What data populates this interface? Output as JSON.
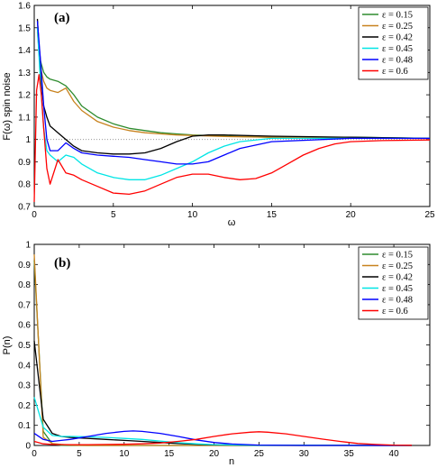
{
  "chart_data": [
    {
      "type": "line",
      "panel_label": "(a)",
      "xlabel": "ω",
      "ylabel": "F(ω) spin noise",
      "xlim": [
        0,
        25
      ],
      "ylim": [
        0.7,
        1.6
      ],
      "xticks": [
        "0",
        "5",
        "10",
        "15",
        "20",
        "25"
      ],
      "yticks": [
        "0.7",
        "0.8",
        "0.9",
        "1",
        "1.1",
        "1.2",
        "1.3",
        "1.4",
        "1.5",
        "1.6"
      ],
      "reference_line": {
        "y": 1,
        "style": "dotted"
      },
      "legend_position": "top-right",
      "series": [
        {
          "name": "ε = 0.15",
          "color": "#2e8b2e",
          "x": [
            0.2,
            0.4,
            0.6,
            0.8,
            1,
            1.5,
            2,
            2.5,
            3,
            4,
            5,
            6,
            7,
            8,
            9,
            10,
            12,
            15,
            20,
            25
          ],
          "y": [
            1.5,
            1.35,
            1.3,
            1.28,
            1.27,
            1.26,
            1.24,
            1.2,
            1.15,
            1.1,
            1.07,
            1.05,
            1.04,
            1.03,
            1.025,
            1.02,
            1.015,
            1.01,
            1.01,
            1.005
          ]
        },
        {
          "name": "ε = 0.25",
          "color": "#c8821e",
          "x": [
            0.2,
            0.4,
            0.6,
            0.8,
            1,
            1.5,
            2,
            2.5,
            3,
            4,
            5,
            6,
            7,
            8,
            9,
            10,
            12,
            15,
            20,
            25
          ],
          "y": [
            1.48,
            1.32,
            1.26,
            1.23,
            1.22,
            1.21,
            1.23,
            1.17,
            1.13,
            1.08,
            1.055,
            1.04,
            1.03,
            1.025,
            1.02,
            1.018,
            1.013,
            1.01,
            1.008,
            1.005
          ]
        },
        {
          "name": "ε = 0.42",
          "color": "#000000",
          "x": [
            0.2,
            0.4,
            0.6,
            0.8,
            1,
            1.5,
            2,
            2.5,
            3,
            4,
            5,
            6,
            7,
            8,
            9,
            10,
            11,
            12,
            15,
            20,
            25
          ],
          "y": [
            1.54,
            1.3,
            1.15,
            1.1,
            1.06,
            1.03,
            1.0,
            0.97,
            0.95,
            0.94,
            0.935,
            0.935,
            0.94,
            0.96,
            0.99,
            1.015,
            1.02,
            1.02,
            1.015,
            1.01,
            1.005
          ]
        },
        {
          "name": "ε = 0.45",
          "color": "#00e5e5",
          "x": [
            0.2,
            0.4,
            0.6,
            0.8,
            1,
            1.5,
            2,
            2.5,
            3,
            4,
            5,
            6,
            7,
            8,
            9,
            10,
            11,
            12,
            13,
            15,
            20,
            25
          ],
          "y": [
            1.5,
            1.25,
            1.05,
            0.95,
            0.93,
            0.9,
            0.93,
            0.92,
            0.89,
            0.85,
            0.83,
            0.82,
            0.82,
            0.84,
            0.87,
            0.9,
            0.94,
            0.97,
            0.99,
            1.005,
            1.005,
            1.005
          ]
        },
        {
          "name": "ε = 0.48",
          "color": "#0000ff",
          "x": [
            0.2,
            0.4,
            0.6,
            0.8,
            1,
            1.5,
            2,
            2.5,
            3,
            4,
            5,
            6,
            7,
            8,
            9,
            10,
            11,
            12,
            13,
            15,
            20,
            25
          ],
          "y": [
            1.53,
            1.35,
            1.15,
            1.0,
            0.95,
            0.95,
            0.985,
            0.96,
            0.94,
            0.93,
            0.925,
            0.92,
            0.91,
            0.9,
            0.89,
            0.89,
            0.9,
            0.93,
            0.96,
            0.99,
            1.005,
            1.005
          ]
        },
        {
          "name": "ε = 0.6",
          "color": "#ff0000",
          "x": [
            0.0,
            0.15,
            0.3,
            0.45,
            0.6,
            0.8,
            1,
            1.5,
            2,
            2.5,
            3,
            4,
            5,
            6,
            7,
            8,
            9,
            10,
            11,
            12,
            13,
            14,
            15,
            16,
            17,
            18,
            19,
            20,
            22,
            25
          ],
          "y": [
            0.72,
            1.22,
            1.29,
            1.2,
            1.05,
            0.87,
            0.8,
            0.91,
            0.85,
            0.84,
            0.82,
            0.79,
            0.76,
            0.755,
            0.77,
            0.8,
            0.83,
            0.845,
            0.845,
            0.83,
            0.82,
            0.825,
            0.85,
            0.89,
            0.93,
            0.96,
            0.98,
            0.99,
            0.995,
            0.998
          ]
        }
      ]
    },
    {
      "type": "line",
      "panel_label": "(b)",
      "xlabel": "n",
      "ylabel": "P(n)",
      "xlim": [
        0,
        44
      ],
      "ylim": [
        0,
        1
      ],
      "xticks": [
        "0",
        "5",
        "10",
        "15",
        "20",
        "25",
        "30",
        "35",
        "40"
      ],
      "yticks": [
        "0",
        "0.1",
        "0.2",
        "0.3",
        "0.4",
        "0.5",
        "0.6",
        "0.7",
        "0.8",
        "0.9",
        "1"
      ],
      "legend_position": "top-right",
      "series": [
        {
          "name": "ε = 0.15",
          "color": "#2e8b2e",
          "x": [
            0,
            1,
            2,
            3,
            4,
            5,
            6,
            8,
            10,
            12,
            42
          ],
          "y": [
            0.92,
            0.07,
            0.008,
            0.001,
            0,
            0,
            0,
            0,
            0,
            0,
            0
          ]
        },
        {
          "name": "ε = 0.25",
          "color": "#c8821e",
          "x": [
            0,
            1,
            2,
            3,
            4,
            5,
            6,
            8,
            10,
            12,
            42
          ],
          "y": [
            0.95,
            0.04,
            0.01,
            0.005,
            0.002,
            0.001,
            0,
            0,
            0,
            0,
            0
          ]
        },
        {
          "name": "ε = 0.42",
          "color": "#000000",
          "x": [
            0,
            1,
            2,
            3,
            4,
            6,
            8,
            10,
            12,
            14,
            16,
            18,
            20,
            25,
            42
          ],
          "y": [
            0.52,
            0.13,
            0.06,
            0.045,
            0.04,
            0.035,
            0.03,
            0.025,
            0.02,
            0.015,
            0.01,
            0.006,
            0.003,
            0.001,
            0
          ]
        },
        {
          "name": "ε = 0.45",
          "color": "#00e5e5",
          "x": [
            0,
            1,
            2,
            3,
            4,
            6,
            8,
            10,
            12,
            14,
            16,
            18,
            20,
            25,
            42
          ],
          "y": [
            0.24,
            0.09,
            0.05,
            0.045,
            0.045,
            0.043,
            0.04,
            0.035,
            0.03,
            0.022,
            0.014,
            0.008,
            0.004,
            0.001,
            0
          ]
        },
        {
          "name": "ε = 0.48",
          "color": "#0000ff",
          "x": [
            0,
            1,
            2,
            3,
            4,
            6,
            8,
            10,
            11,
            12,
            14,
            16,
            18,
            20,
            22,
            25,
            30,
            42
          ],
          "y": [
            0.06,
            0.03,
            0.02,
            0.025,
            0.03,
            0.045,
            0.06,
            0.07,
            0.072,
            0.07,
            0.06,
            0.045,
            0.028,
            0.015,
            0.007,
            0.002,
            0,
            0
          ]
        },
        {
          "name": "ε = 0.6",
          "color": "#ff0000",
          "x": [
            0,
            1,
            2,
            4,
            6,
            8,
            10,
            12,
            14,
            16,
            18,
            20,
            22,
            24,
            25,
            26,
            28,
            30,
            32,
            34,
            36,
            38,
            40,
            42
          ],
          "y": [
            0.02,
            0.008,
            0.005,
            0.004,
            0.004,
            0.005,
            0.006,
            0.008,
            0.012,
            0.02,
            0.03,
            0.045,
            0.058,
            0.066,
            0.068,
            0.066,
            0.058,
            0.045,
            0.032,
            0.02,
            0.01,
            0.005,
            0.002,
            0.001
          ]
        }
      ]
    }
  ]
}
